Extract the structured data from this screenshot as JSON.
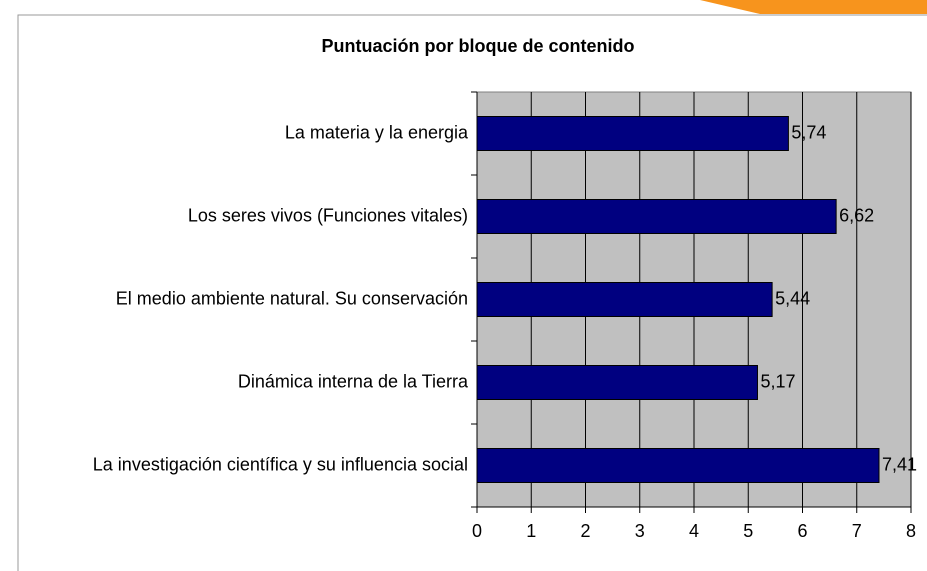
{
  "chart_data": {
    "type": "bar",
    "orientation": "horizontal",
    "title": "Puntuación por bloque de contenido",
    "categories": [
      "La materia y la energia",
      "Los seres vivos (Funciones vitales)",
      "El medio ambiente natural. Su conservación",
      "Dinámica interna de la Tierra",
      "La investigación científica y su influencia social"
    ],
    "values": [
      5.74,
      6.62,
      5.44,
      5.17,
      7.41
    ],
    "value_labels": [
      "5,74",
      "6,62",
      "5,44",
      "5,17",
      "7,41"
    ],
    "color": "#000080",
    "xlim": [
      0,
      8
    ],
    "xticks": [
      0,
      1,
      2,
      3,
      4,
      5,
      6,
      7,
      8
    ],
    "grid": true
  }
}
